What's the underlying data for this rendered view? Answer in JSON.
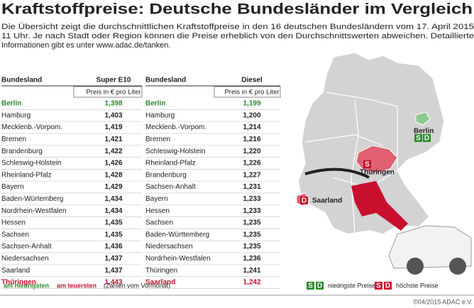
{
  "header": {
    "title": "Kraftstoffpreise: Deutsche Bundesländer im Vergleich",
    "intro_lines": [
      "Die Übersicht zeigt die durchschnittlichen Kraftstoffpreise in den 16 deutschen Bundesländern vom 17. April 2015",
      "11 Uhr. Je nach Stadt oder Region können die Preise erheblich von den Durchschnittswerten abweichen. Detaillierte",
      "Informationen gibt es unter www.adac.de/tanken."
    ]
  },
  "tables": [
    {
      "header": [
        "Bundesland",
        "Super E10"
      ],
      "subheader": "Preis in € pro Liter",
      "rows": [
        [
          "Berlin",
          "1,398"
        ],
        [
          "Hamburg",
          "1,403"
        ],
        [
          "Mecklenb.-Vorpom.",
          "1,419"
        ],
        [
          "Bremen",
          "1,421"
        ],
        [
          "Brandenburg",
          "1,422"
        ],
        [
          "Schleswig-Holstein",
          "1,426"
        ],
        [
          "Rheinland-Pfalz",
          "1,428"
        ],
        [
          "Bayern",
          "1,429"
        ],
        [
          "Baden-Würtemberg",
          "1,434"
        ],
        [
          "Nordrhein-Westfalen",
          "1,434"
        ],
        [
          "Hessen",
          "1,435"
        ],
        [
          "Sachsen",
          "1,435"
        ],
        [
          "Sachsen-Anhalt",
          "1,436"
        ],
        [
          "Niedersachsen",
          "1,437"
        ],
        [
          "Saarland",
          "1,437"
        ],
        [
          "Thüringen",
          "1,443"
        ]
      ]
    },
    {
      "header": [
        "Bundesland",
        "Diesel"
      ],
      "subheader": "Preis in € pro Liter",
      "rows": [
        [
          "Berlin",
          "1,199"
        ],
        [
          "Hamburg",
          "1,200"
        ],
        [
          "Mecklenb.-Vorpom.",
          "1,214"
        ],
        [
          "Bremen",
          "1,216"
        ],
        [
          "Schleswig-Holstein",
          "1,220"
        ],
        [
          "Rheinland-Pfalz",
          "1,226"
        ],
        [
          "Brandenburg",
          "1,227"
        ],
        [
          "Sachsen-Anhalt",
          "1,231"
        ],
        [
          "Bayern",
          "1,233"
        ],
        [
          "Hessen",
          "1,233"
        ],
        [
          "Sachsen",
          "1,235"
        ],
        [
          "Baden-Württemberg",
          "1,235"
        ],
        [
          "Niedersachsen",
          "1,235"
        ],
        [
          "Nordrhein-Westfalen",
          "1,236"
        ],
        [
          "Thüringen",
          "1,241"
        ],
        [
          "Saarland",
          "1,242"
        ]
      ]
    }
  ],
  "map": {
    "labels": {
      "berlin": "Berlin",
      "thueringen": "Thüringen",
      "saarland": "Saarland"
    },
    "badges": {
      "super": "S",
      "diesel": "D"
    }
  },
  "legend": {
    "lowest": "am niedrigsten",
    "highest": "am teuersten",
    "note": "(Zahlen vom Vormonat)",
    "lowest_prices": "niedrigste Preise",
    "highest_prices": "höchste Preise"
  },
  "footer": "©04/2015 ADAC e.V."
}
